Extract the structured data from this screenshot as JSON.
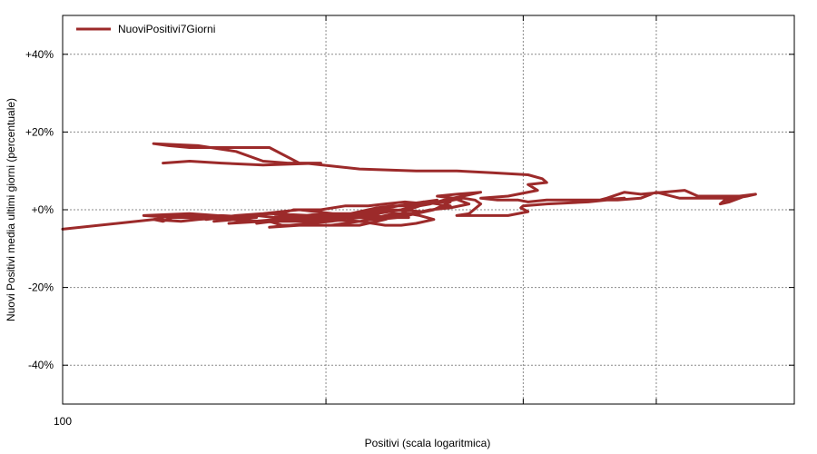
{
  "chart_data": {
    "type": "line",
    "title": "",
    "xlabel": "Positivi (scala logaritmica)",
    "ylabel": "Nuovi Positivi media ultimi giorni (percentuale)",
    "x_scale": "log",
    "xlim": [
      100,
      1500
    ],
    "ylim": [
      -50,
      50
    ],
    "x_tick_labels": [
      "100"
    ],
    "y_ticks": [
      {
        "value": 40,
        "label": "+40%"
      },
      {
        "value": 20,
        "label": "+20%"
      },
      {
        "value": 0,
        "label": "+0%"
      },
      {
        "value": -20,
        "label": "-20%"
      },
      {
        "value": -40,
        "label": "-40%"
      }
    ],
    "x_gridlines": [
      265,
      550,
      900
    ],
    "grid": true,
    "legend_position": "top-left",
    "series": [
      {
        "name": "NuoviPositivi7Giorni",
        "color": "#9c2a2a",
        "points": [
          [
            100,
            -5
          ],
          [
            140,
            -2.5
          ],
          [
            145,
            -3
          ],
          [
            150,
            -2
          ],
          [
            180,
            -1.5
          ],
          [
            205,
            -2
          ],
          [
            175,
            -3
          ],
          [
            215,
            -1
          ],
          [
            250,
            -1.5
          ],
          [
            285,
            -2
          ],
          [
            300,
            -1
          ],
          [
            340,
            0
          ],
          [
            380,
            -0.5
          ],
          [
            420,
            1
          ],
          [
            380,
            2
          ],
          [
            330,
            0.5
          ],
          [
            300,
            -1
          ],
          [
            275,
            -2
          ],
          [
            260,
            -2
          ],
          [
            235,
            -2.5
          ],
          [
            210,
            -3
          ],
          [
            185,
            -3.5
          ],
          [
            220,
            -2.5
          ],
          [
            260,
            -1
          ],
          [
            290,
            -1
          ],
          [
            320,
            0.5
          ],
          [
            340,
            1
          ],
          [
            360,
            1
          ],
          [
            390,
            2
          ],
          [
            420,
            2
          ],
          [
            395,
            0
          ],
          [
            370,
            -1
          ],
          [
            345,
            -2
          ],
          [
            320,
            -2.5
          ],
          [
            300,
            -2
          ],
          [
            270,
            -3
          ],
          [
            250,
            -3.5
          ],
          [
            215,
            -4.5
          ],
          [
            240,
            -4
          ],
          [
            270,
            -4
          ],
          [
            300,
            -3
          ],
          [
            330,
            -2
          ],
          [
            365,
            -1
          ],
          [
            390,
            0
          ],
          [
            420,
            0.5
          ],
          [
            450,
            1.5
          ],
          [
            425,
            3
          ],
          [
            400,
            3.5
          ],
          [
            430,
            4
          ],
          [
            470,
            4.5
          ],
          [
            440,
            3.5
          ],
          [
            410,
            2.5
          ],
          [
            390,
            1.5
          ],
          [
            375,
            1
          ],
          [
            360,
            0
          ],
          [
            345,
            -1.5
          ],
          [
            330,
            -2.5
          ],
          [
            300,
            -4
          ],
          [
            260,
            -4
          ],
          [
            225,
            -4
          ],
          [
            215,
            -3
          ],
          [
            205,
            -3
          ],
          [
            170,
            -2
          ],
          [
            150,
            -2
          ],
          [
            135,
            -1.5
          ],
          [
            160,
            -1
          ],
          [
            177,
            -1.5
          ],
          [
            150,
            -1.5
          ],
          [
            140,
            -2.5
          ],
          [
            155,
            -3
          ],
          [
            165,
            -2.5
          ],
          [
            180,
            -2
          ],
          [
            195,
            -3
          ],
          [
            220,
            -3
          ],
          [
            240,
            -2.5
          ],
          [
            285,
            -1.5
          ],
          [
            310,
            -1
          ],
          [
            330,
            -2
          ],
          [
            340,
            -2
          ],
          [
            360,
            -2
          ],
          [
            290,
            -1.5
          ],
          [
            240,
            0
          ],
          [
            210,
            -1
          ],
          [
            190,
            -1.5
          ],
          [
            170,
            -2.5
          ],
          [
            180,
            -2
          ],
          [
            205,
            -1.5
          ],
          [
            220,
            -2
          ],
          [
            245,
            -2
          ],
          [
            265,
            -2.5
          ],
          [
            300,
            -3
          ],
          [
            330,
            -4
          ],
          [
            350,
            -4
          ],
          [
            370,
            -3.5
          ],
          [
            395,
            -2.5
          ],
          [
            375,
            -1.5
          ],
          [
            360,
            -1
          ],
          [
            340,
            -1
          ],
          [
            320,
            -2
          ],
          [
            290,
            -2
          ],
          [
            270,
            -2.5
          ],
          [
            250,
            -3
          ],
          [
            230,
            -3
          ],
          [
            215,
            -3
          ],
          [
            205,
            -3.5
          ],
          [
            230,
            -2.5
          ],
          [
            260,
            -2
          ],
          [
            290,
            -1
          ],
          [
            320,
            0
          ],
          [
            360,
            1.5
          ],
          [
            400,
            2.5
          ],
          [
            380,
            1.5
          ],
          [
            350,
            0
          ],
          [
            320,
            -1
          ],
          [
            300,
            -1.5
          ],
          [
            280,
            -1.5
          ],
          [
            265,
            -1.5
          ],
          [
            250,
            -2
          ],
          [
            235,
            -2
          ],
          [
            220,
            -1.5
          ],
          [
            235,
            0
          ],
          [
            260,
            0
          ],
          [
            285,
            1
          ],
          [
            310,
            1
          ],
          [
            330,
            1.5
          ],
          [
            355,
            2
          ],
          [
            385,
            1.5
          ],
          [
            410,
            2
          ],
          [
            440,
            3
          ],
          [
            460,
            2.5
          ],
          [
            470,
            1.5
          ],
          [
            450,
            -1
          ],
          [
            430,
            -1.5
          ],
          [
            470,
            -1.5
          ],
          [
            520,
            -1.5
          ],
          [
            560,
            -0.5
          ],
          [
            545,
            0.5
          ],
          [
            550,
            1
          ],
          [
            600,
            1.5
          ],
          [
            700,
            2
          ],
          [
            800,
            3
          ],
          [
            730,
            2.5
          ],
          [
            750,
            3
          ],
          [
            800,
            4.5
          ],
          [
            850,
            4
          ],
          [
            1000,
            5
          ],
          [
            1050,
            3.5
          ],
          [
            1250,
            3.5
          ],
          [
            1180,
            2
          ],
          [
            1140,
            1.5
          ],
          [
            1160,
            2.5
          ],
          [
            1260,
            3.5
          ],
          [
            1300,
            4
          ],
          [
            1150,
            3
          ],
          [
            1050,
            3
          ],
          [
            980,
            3
          ],
          [
            900,
            4.5
          ],
          [
            850,
            3
          ],
          [
            780,
            2.5
          ],
          [
            700,
            2.5
          ],
          [
            600,
            2.5
          ],
          [
            560,
            2
          ],
          [
            540,
            2.5
          ],
          [
            500,
            2.5
          ],
          [
            470,
            3
          ],
          [
            520,
            3.5
          ],
          [
            580,
            5
          ],
          [
            560,
            6.5
          ],
          [
            600,
            7
          ],
          [
            590,
            8
          ],
          [
            560,
            9
          ],
          [
            490,
            9.5
          ],
          [
            430,
            10
          ],
          [
            370,
            10
          ],
          [
            300,
            10.5
          ],
          [
            245,
            12
          ],
          [
            230,
            12
          ],
          [
            210,
            12.5
          ],
          [
            190,
            15
          ],
          [
            165,
            16.5
          ],
          [
            140,
            17
          ],
          [
            148,
            16.5
          ],
          [
            160,
            16
          ],
          [
            215,
            16
          ],
          [
            240,
            12
          ],
          [
            260,
            12
          ],
          [
            210,
            11.5
          ],
          [
            180,
            12
          ],
          [
            160,
            12.5
          ],
          [
            145,
            12
          ]
        ]
      }
    ]
  }
}
